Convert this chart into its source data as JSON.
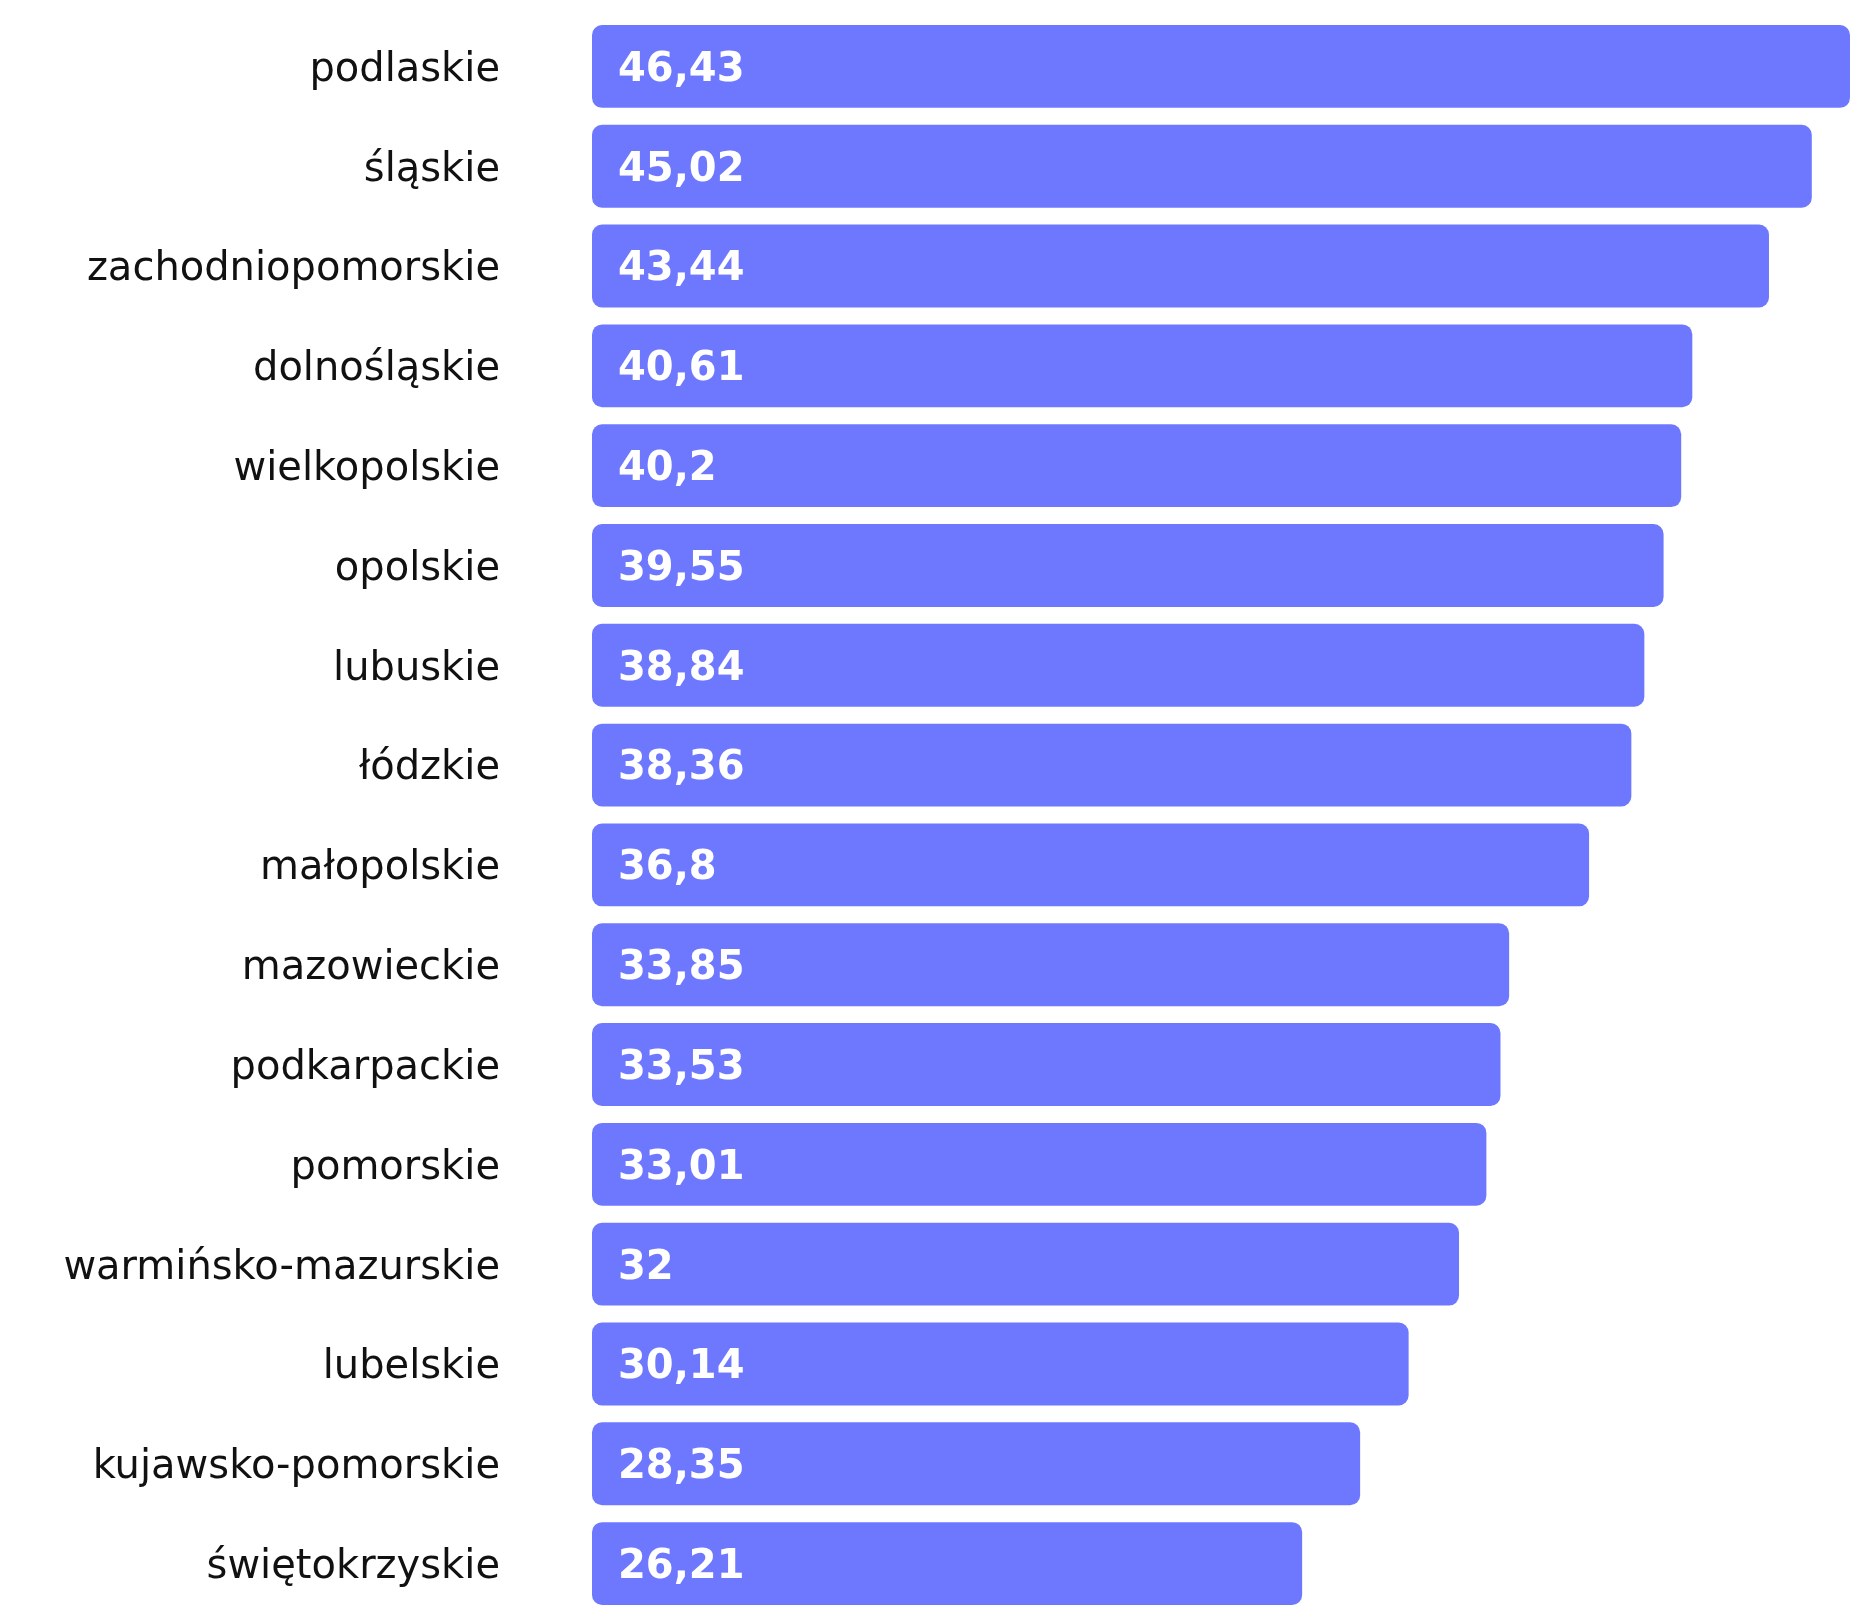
{
  "chart_data": {
    "type": "bar",
    "orientation": "horizontal",
    "categories": [
      "podlaskie",
      "śląskie",
      "zachodniopomorskie",
      "dolnośląskie",
      "wielkopolskie",
      "opolskie",
      "lubuskie",
      "łódzkie",
      "małopolskie",
      "mazowieckie",
      "podkarpackie",
      "pomorskie",
      "warmińsko-mazurskie",
      "lubelskie",
      "kujawsko-pomorskie",
      "świętokrzyskie"
    ],
    "values": [
      46.43,
      45.02,
      43.44,
      40.61,
      40.2,
      39.55,
      38.84,
      38.36,
      36.8,
      33.85,
      33.53,
      33.01,
      32,
      30.14,
      28.35,
      26.21
    ],
    "value_labels": [
      "46,43",
      "45,02",
      "43,44",
      "40,61",
      "40,2",
      "39,55",
      "38,84",
      "38,36",
      "36,8",
      "33,85",
      "33,53",
      "33,01",
      "32",
      "30,14",
      "28,35",
      "26,21"
    ],
    "color": "#6e78ff"
  }
}
